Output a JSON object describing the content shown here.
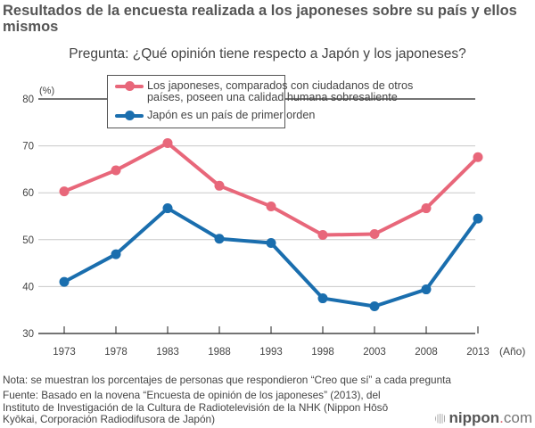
{
  "title": "Resultados de la encuesta realizada a los japoneses sobre su país y ellos mismos",
  "question": "Pregunta: ¿Qué opinión tiene respecto a Japón y los japoneses?",
  "note": "Nota: se muestran los porcentajes de personas que respondieron “Creo que sí” a cada pregunta",
  "source_lines": [
    "Fuente: Basado en la novena “Encuesta de opinión de los japoneses” (2013), del",
    "Instituto de Investigación de la Cultura de Radiotelevisión de la NHK (Nippon Hōsō",
    "Kyōkai, Corporación Radiodifusora de Japón)"
  ],
  "logo": {
    "name": "nippon",
    "dot": ".",
    "suffix": "com"
  },
  "legend": [
    {
      "lines": [
        "Los japoneses, comparados con ciudadanos de otros",
        "países, poseen una calidad humana sobresaliente"
      ],
      "color": "#e8677a"
    },
    {
      "lines": [
        "Japón es un país de primer orden"
      ],
      "color": "#1a6eae"
    }
  ],
  "chart_data": {
    "type": "line",
    "title": "Pregunta: ¿Qué opinión tiene respecto a Japón y los japoneses?",
    "xlabel": "(Año)",
    "ylabel": "(%)",
    "categories": [
      "1973",
      "1978",
      "1983",
      "1988",
      "1993",
      "1998",
      "2003",
      "2008",
      "2013"
    ],
    "ylim": [
      30,
      80
    ],
    "yticks": [
      30,
      40,
      50,
      60,
      70,
      80
    ],
    "grid": true,
    "legend_position": "top",
    "series": [
      {
        "name": "Los japoneses, comparados con ciudadanos de otros países, poseen una calidad humana sobresaliente",
        "color": "#e8677a",
        "values": [
          60.3,
          64.8,
          70.6,
          61.5,
          57.1,
          51.0,
          51.2,
          56.7,
          67.6
        ]
      },
      {
        "name": "Japón es un país de primer orden",
        "color": "#1a6eae",
        "values": [
          41.0,
          46.9,
          56.7,
          50.2,
          49.3,
          37.5,
          35.8,
          39.4,
          54.5
        ]
      }
    ]
  }
}
